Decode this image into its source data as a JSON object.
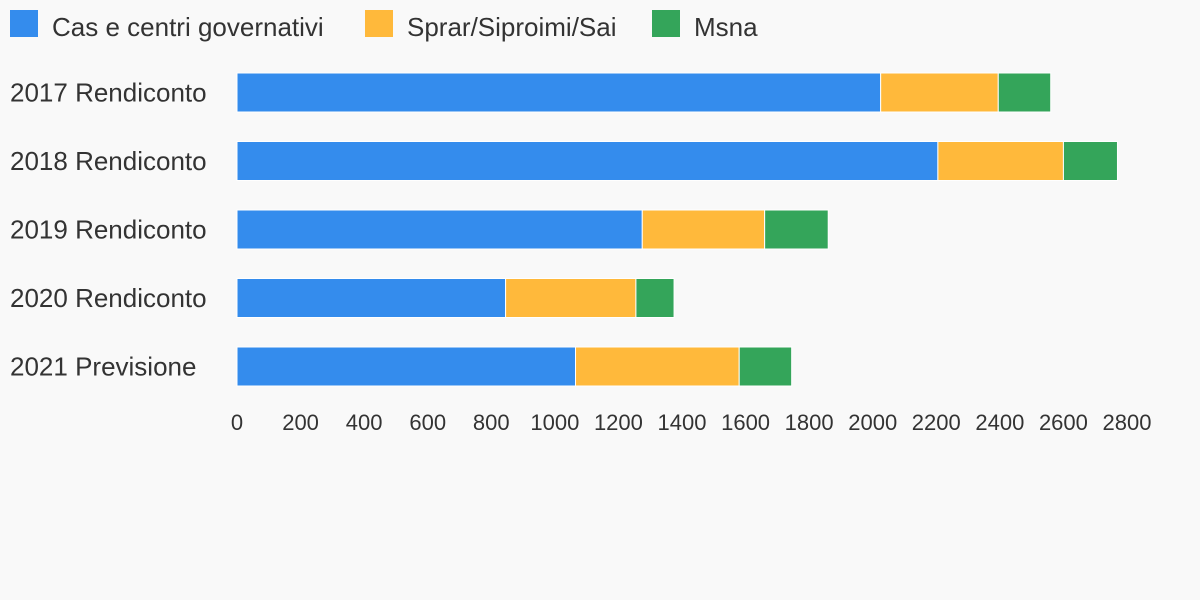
{
  "chart_data": {
    "type": "bar",
    "orientation": "horizontal",
    "stacked": true,
    "categories": [
      "2017 Rendiconto",
      "2018 Rendiconto",
      "2019 Rendiconto",
      "2020 Rendiconto",
      "2021 Previsione"
    ],
    "series": [
      {
        "name": "Cas e centri governativi",
        "color": "#348ced",
        "values": [
          2025,
          2205,
          1275,
          845,
          1065
        ]
      },
      {
        "name": "Sprar/Siproimi/Sai",
        "color": "#ffb93b",
        "values": [
          370,
          395,
          385,
          410,
          515
        ]
      },
      {
        "name": "Msna",
        "color": "#34a55a",
        "values": [
          165,
          170,
          200,
          120,
          165
        ]
      }
    ],
    "xlim": [
      0,
      2800
    ],
    "x_ticks": [
      0,
      200,
      400,
      600,
      800,
      1000,
      1200,
      1400,
      1600,
      1800,
      2000,
      2200,
      2400,
      2600,
      2800
    ],
    "legend_position": "top-left",
    "grid": false
  }
}
